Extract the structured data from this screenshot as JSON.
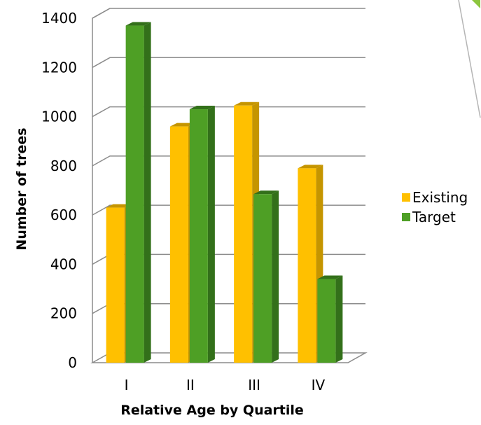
{
  "chart_data": {
    "type": "bar",
    "title": "",
    "xlabel": "Relative Age by Quartile",
    "ylabel": "Number of trees",
    "categories": [
      "I",
      "II",
      "III",
      "IV"
    ],
    "series": [
      {
        "name": "Existing",
        "values": [
          630,
          960,
          1045,
          790
        ],
        "color": "#FFC000",
        "side_color": "#C59500"
      },
      {
        "name": "Target",
        "values": [
          1370,
          1030,
          685,
          340
        ],
        "color": "#4E9F25",
        "side_color": "#33701A"
      }
    ],
    "ylim": [
      0,
      1400
    ],
    "yticks": [
      "0",
      "200",
      "400",
      "600",
      "800",
      "1000",
      "1200",
      "1400"
    ],
    "grid": true,
    "legend_position": "right",
    "style": "3d-clustered-column"
  }
}
